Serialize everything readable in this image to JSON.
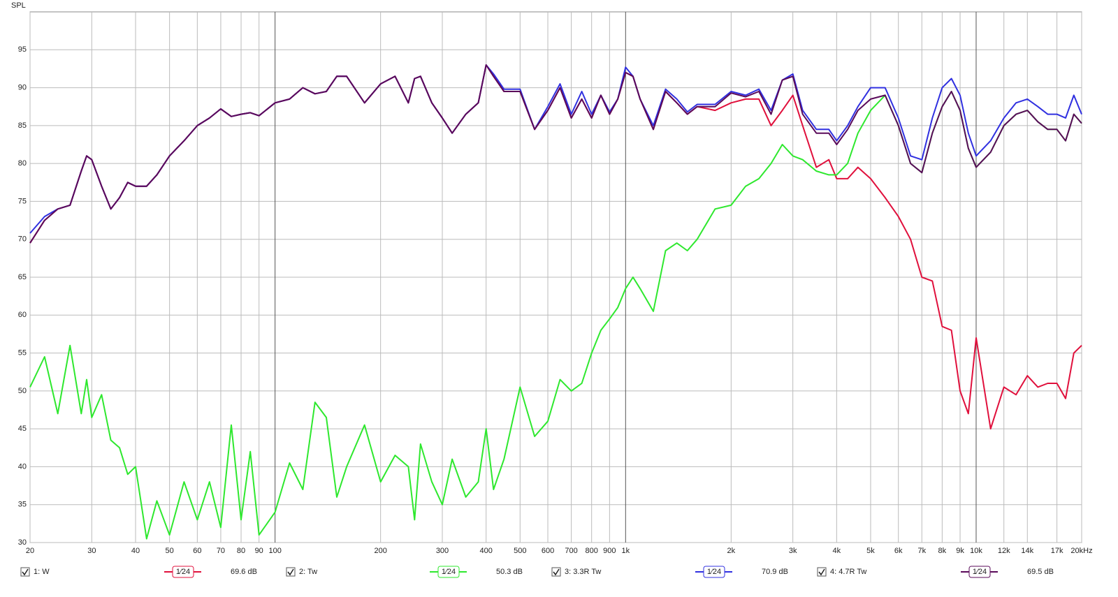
{
  "chart_data": {
    "type": "line",
    "ylabel": "SPL",
    "log_x": true,
    "grid": true,
    "xlim": [
      20,
      20000
    ],
    "ylim": [
      30,
      100
    ],
    "yticks": [
      30,
      35,
      40,
      45,
      50,
      55,
      60,
      65,
      70,
      75,
      80,
      85,
      90,
      95
    ],
    "xticks": [
      20,
      30,
      40,
      50,
      60,
      70,
      80,
      90,
      100,
      200,
      300,
      400,
      500,
      600,
      700,
      800,
      900,
      {
        "value": 1000,
        "label": "1k"
      },
      {
        "value": 2000,
        "label": "2k"
      },
      {
        "value": 3000,
        "label": "3k"
      },
      {
        "value": 4000,
        "label": "4k"
      },
      {
        "value": 5000,
        "label": "5k"
      },
      {
        "value": 6000,
        "label": "6k"
      },
      {
        "value": 7000,
        "label": "7k"
      },
      {
        "value": 8000,
        "label": "8k"
      },
      {
        "value": 9000,
        "label": "9k"
      },
      {
        "value": 10000,
        "label": "10k"
      },
      {
        "value": 12000,
        "label": "12k"
      },
      {
        "value": 14000,
        "label": "14k"
      },
      {
        "value": 17000,
        "label": "17k"
      },
      {
        "value": 20000,
        "label": "20kHz"
      }
    ],
    "x": [
      20,
      22,
      24,
      26,
      28,
      29,
      30,
      32,
      34,
      36,
      38,
      40,
      43,
      46,
      50,
      55,
      60,
      65,
      70,
      75,
      80,
      85,
      90,
      100,
      110,
      120,
      130,
      140,
      150,
      160,
      180,
      200,
      220,
      240,
      250,
      260,
      280,
      300,
      320,
      350,
      380,
      400,
      420,
      450,
      500,
      550,
      600,
      650,
      700,
      750,
      800,
      850,
      900,
      950,
      1000,
      1050,
      1100,
      1200,
      1300,
      1400,
      1500,
      1600,
      1800,
      2000,
      2200,
      2400,
      2600,
      2800,
      3000,
      3200,
      3500,
      3800,
      4000,
      4300,
      4600,
      5000,
      5500,
      6000,
      6500,
      7000,
      7500,
      8000,
      8500,
      9000,
      9500,
      10000,
      11000,
      12000,
      13000,
      14000,
      15000,
      16000,
      17000,
      18000,
      19000,
      20000
    ],
    "series": [
      {
        "name": "1: W",
        "smoothing": "1⁄24",
        "level": "69.6 dB",
        "color": "#e0103c",
        "values": [
          69.5,
          72.5,
          74,
          74.5,
          79,
          81,
          80.5,
          77,
          74,
          75.5,
          77.5,
          77,
          77,
          78.5,
          81,
          83,
          85,
          86,
          87.2,
          86.2,
          86.5,
          86.7,
          86.3,
          88,
          88.5,
          90,
          89.2,
          89.5,
          91.5,
          91.5,
          88,
          90.5,
          91.5,
          88,
          91.2,
          91.5,
          88,
          86,
          84,
          86.5,
          88,
          93,
          91.5,
          89.5,
          89.5,
          84.5,
          87,
          90,
          86,
          88.5,
          86,
          89,
          86.5,
          88.5,
          92,
          91.5,
          88.5,
          84.5,
          89.5,
          88,
          86.5,
          87.5,
          87,
          88,
          88.5,
          88.5,
          85,
          87,
          89,
          85,
          79.5,
          80.5,
          78,
          78,
          79.5,
          78,
          75.5,
          73,
          70,
          65,
          64.5,
          58.5,
          58,
          50,
          47,
          57,
          45,
          50.5,
          49.5,
          52,
          50.5,
          51,
          51,
          49,
          55,
          56
        ]
      },
      {
        "name": "2: Tw",
        "smoothing": "1⁄24",
        "level": "50.3 dB",
        "color": "#2ee82e",
        "values": [
          50.5,
          54.5,
          47,
          56,
          47,
          51.5,
          46.5,
          49.5,
          43.5,
          42.5,
          39,
          40,
          30.5,
          35.5,
          31,
          38,
          33,
          38,
          32,
          45.5,
          33,
          42,
          31,
          34,
          40.5,
          37,
          48.5,
          46.5,
          36,
          40,
          45.5,
          38,
          41.5,
          40,
          33,
          43,
          38,
          35,
          41,
          36,
          38,
          45,
          37,
          41,
          50.5,
          44,
          46,
          51.5,
          50,
          51,
          55,
          58,
          59.5,
          61,
          63.5,
          65,
          63.5,
          60.5,
          68.5,
          69.5,
          68.5,
          70,
          74,
          74.5,
          77,
          78,
          80,
          82.5,
          81,
          80.5,
          79,
          78.5,
          78.5,
          80,
          84,
          87,
          89,
          85,
          80,
          78.8,
          84,
          87.5,
          89.5,
          87,
          82,
          79.5,
          81.5,
          85,
          86.5,
          87,
          85.5,
          84.5,
          84.5,
          83,
          86.5,
          85.3
        ]
      },
      {
        "name": "3: 3.3R Tw",
        "smoothing": "1⁄24",
        "level": "70.9 dB",
        "color": "#3030e0",
        "values": [
          70.8,
          73,
          74,
          74.5,
          79,
          81,
          80.5,
          77,
          74,
          75.5,
          77.5,
          77,
          77,
          78.5,
          81,
          83,
          85,
          86,
          87.2,
          86.2,
          86.5,
          86.7,
          86.3,
          88,
          88.5,
          90,
          89.2,
          89.5,
          91.5,
          91.5,
          88,
          90.5,
          91.5,
          88,
          91.2,
          91.5,
          88,
          86,
          84,
          86.5,
          88,
          93,
          91.8,
          89.8,
          89.8,
          84.5,
          87.5,
          90.5,
          86.5,
          89.5,
          86.5,
          89,
          86.8,
          88.5,
          92.7,
          91.5,
          88.5,
          85,
          89.8,
          88.5,
          86.8,
          87.8,
          87.8,
          89.5,
          89,
          89.8,
          87,
          91,
          91.8,
          87,
          84.5,
          84.5,
          83,
          85,
          87.5,
          90,
          90,
          86,
          81,
          80.5,
          86,
          90,
          91.2,
          89,
          84,
          81,
          83,
          86,
          88,
          88.5,
          87.5,
          86.5,
          86.5,
          86,
          89,
          86.5
        ]
      },
      {
        "name": "4: 4.7R Tw",
        "smoothing": "1⁄24",
        "level": "69.5 dB",
        "color": "#5a0a5a",
        "values": [
          69.5,
          72.5,
          74,
          74.5,
          79,
          81,
          80.5,
          77,
          74,
          75.5,
          77.5,
          77,
          77,
          78.5,
          81,
          83,
          85,
          86,
          87.2,
          86.2,
          86.5,
          86.7,
          86.3,
          88,
          88.5,
          90,
          89.2,
          89.5,
          91.5,
          91.5,
          88,
          90.5,
          91.5,
          88,
          91.2,
          91.5,
          88,
          86,
          84,
          86.5,
          88,
          93,
          91.5,
          89.5,
          89.5,
          84.5,
          87,
          90,
          86,
          88.5,
          86,
          89,
          86.5,
          88.5,
          92,
          91.5,
          88.5,
          84.5,
          89.5,
          88,
          86.5,
          87.5,
          87.5,
          89.3,
          88.8,
          89.5,
          86.5,
          91,
          91.5,
          86.5,
          84,
          84,
          82.5,
          84.5,
          87,
          88.5,
          89,
          85,
          80,
          78.8,
          84,
          87.5,
          89.5,
          87,
          82,
          79.5,
          81.5,
          85,
          86.5,
          87,
          85.5,
          84.5,
          84.5,
          83,
          86.5,
          85.3
        ]
      }
    ]
  }
}
